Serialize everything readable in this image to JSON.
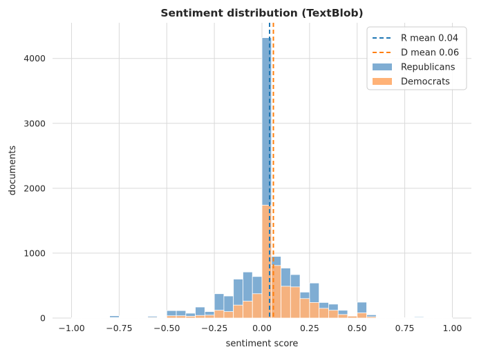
{
  "chart_data": {
    "type": "histogram",
    "title": "Sentiment distribution (TextBlob)",
    "xlabel": "sentiment score",
    "ylabel": "documents",
    "xlim": [
      -1.1,
      1.1
    ],
    "ylim": [
      0,
      4550
    ],
    "xticks": [
      -1.0,
      -0.75,
      -0.5,
      -0.25,
      0.0,
      0.25,
      0.5,
      0.75,
      1.0
    ],
    "xtick_labels": [
      "−1.00",
      "−0.75",
      "−0.50",
      "−0.25",
      "0.00",
      "0.25",
      "0.50",
      "0.75",
      "1.00"
    ],
    "yticks": [
      0,
      1000,
      2000,
      3000,
      4000
    ],
    "ytick_labels": [
      "0",
      "1000",
      "2000",
      "3000",
      "4000"
    ],
    "grid": true,
    "legend_position": "top-right",
    "bin_width": 0.05,
    "bin_starts": [
      -1.0,
      -0.95,
      -0.9,
      -0.85,
      -0.8,
      -0.75,
      -0.7,
      -0.65,
      -0.6,
      -0.55,
      -0.5,
      -0.45,
      -0.4,
      -0.35,
      -0.3,
      -0.25,
      -0.2,
      -0.15,
      -0.1,
      -0.05,
      0.0,
      0.05,
      0.1,
      0.15,
      0.2,
      0.25,
      0.3,
      0.35,
      0.4,
      0.45,
      0.5,
      0.55,
      0.6,
      0.65,
      0.7,
      0.75,
      0.8,
      0.85,
      0.9,
      0.95
    ],
    "series": [
      {
        "name": "Republicans",
        "color": "#1f77b4",
        "fill": "#7fadd3",
        "values": [
          5,
          3,
          2,
          4,
          35,
          5,
          5,
          8,
          28,
          12,
          115,
          115,
          75,
          170,
          100,
          375,
          340,
          600,
          710,
          640,
          4320,
          950,
          770,
          670,
          400,
          540,
          240,
          215,
          120,
          35,
          245,
          50,
          5,
          3,
          5,
          3,
          20,
          3,
          2,
          5
        ]
      },
      {
        "name": "Democrats",
        "color": "#ff7f0e",
        "fill": "#ffb277",
        "values": [
          3,
          2,
          2,
          2,
          8,
          3,
          3,
          5,
          10,
          8,
          35,
          35,
          28,
          40,
          45,
          120,
          100,
          200,
          260,
          375,
          1740,
          810,
          490,
          480,
          300,
          240,
          150,
          120,
          55,
          30,
          80,
          20,
          3,
          2,
          3,
          2,
          8,
          2,
          2,
          3
        ]
      }
    ],
    "mean_lines": [
      {
        "label": "R mean 0.04",
        "x": 0.04,
        "color": "#1f77b4"
      },
      {
        "label": "D mean 0.06",
        "x": 0.06,
        "color": "#ff7f0e"
      }
    ]
  }
}
